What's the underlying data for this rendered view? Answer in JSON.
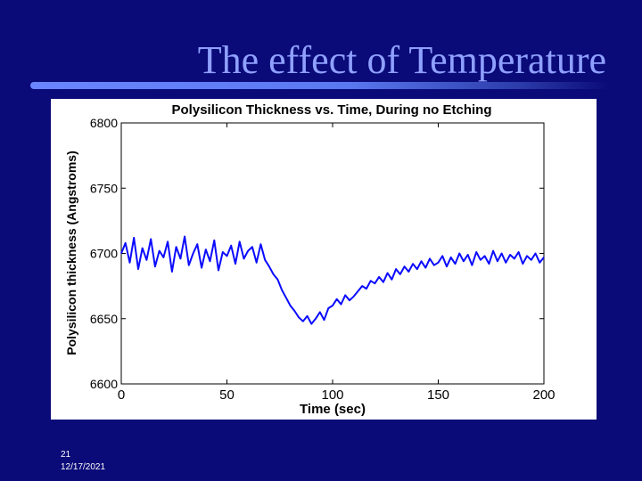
{
  "slide": {
    "title": "The effect of Temperature",
    "number": "21",
    "date": "12/17/2021"
  },
  "colors": {
    "background": "#0a0a78",
    "title": "#8fa0ff",
    "series": "#0b0bff"
  },
  "chart_data": {
    "type": "line",
    "title": "Polysilicon Thickness vs. Time, During no Etching",
    "xlabel": "Time (sec)",
    "ylabel": "Polysilicon thickness (Angstroms)",
    "xlim": [
      0,
      200
    ],
    "ylim": [
      6600,
      6800
    ],
    "xticks": [
      0,
      50,
      100,
      150,
      200
    ],
    "yticks": [
      6600,
      6650,
      6700,
      6750,
      6800
    ],
    "grid": false,
    "series": [
      {
        "name": "thickness",
        "x": [
          0,
          2,
          4,
          6,
          8,
          10,
          12,
          14,
          16,
          18,
          20,
          22,
          24,
          26,
          28,
          30,
          32,
          34,
          36,
          38,
          40,
          42,
          44,
          46,
          48,
          50,
          52,
          54,
          56,
          58,
          60,
          62,
          64,
          66,
          68,
          70,
          72,
          74,
          76,
          78,
          80,
          82,
          84,
          86,
          88,
          90,
          92,
          94,
          96,
          98,
          100,
          102,
          104,
          106,
          108,
          110,
          112,
          114,
          116,
          118,
          120,
          122,
          124,
          126,
          128,
          130,
          132,
          134,
          136,
          138,
          140,
          142,
          144,
          146,
          148,
          150,
          152,
          154,
          156,
          158,
          160,
          162,
          164,
          166,
          168,
          170,
          172,
          174,
          176,
          178,
          180,
          182,
          184,
          186,
          188,
          190,
          192,
          194,
          196,
          198,
          200
        ],
        "y": [
          6700,
          6708,
          6693,
          6712,
          6688,
          6704,
          6695,
          6711,
          6690,
          6702,
          6697,
          6709,
          6686,
          6705,
          6696,
          6713,
          6691,
          6700,
          6707,
          6689,
          6703,
          6694,
          6710,
          6687,
          6701,
          6698,
          6706,
          6692,
          6709,
          6696,
          6702,
          6705,
          6693,
          6707,
          6695,
          6690,
          6684,
          6680,
          6672,
          6666,
          6660,
          6656,
          6651,
          6648,
          6652,
          6646,
          6650,
          6655,
          6649,
          6658,
          6660,
          6665,
          6661,
          6668,
          6664,
          6667,
          6671,
          6675,
          6673,
          6679,
          6677,
          6682,
          6678,
          6685,
          6680,
          6688,
          6684,
          6690,
          6686,
          6692,
          6688,
          6694,
          6689,
          6696,
          6691,
          6693,
          6698,
          6690,
          6697,
          6692,
          6700,
          6694,
          6699,
          6691,
          6701,
          6695,
          6698,
          6692,
          6702,
          6694,
          6700,
          6693,
          6699,
          6696,
          6701,
          6692,
          6698,
          6695,
          6700,
          6693,
          6697
        ]
      }
    ]
  }
}
